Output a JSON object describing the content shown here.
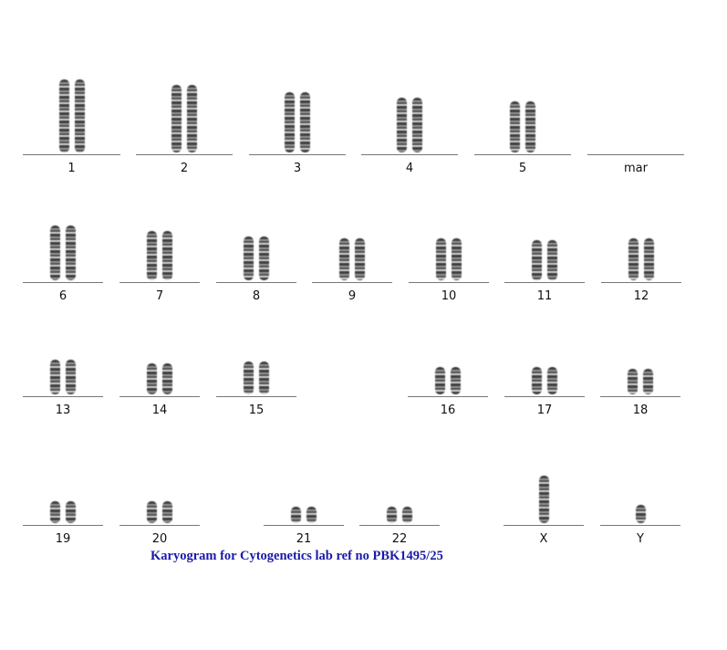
{
  "rows": [
    [
      "1",
      "2",
      "3",
      "4",
      "5",
      "mar"
    ],
    [
      "6",
      "7",
      "8",
      "9",
      "10",
      "11",
      "12"
    ],
    [
      "13",
      "14",
      "15",
      "16",
      "17",
      "18"
    ],
    [
      "19",
      "20",
      "21",
      "22",
      "X",
      "Y"
    ]
  ],
  "caption": "Karyogram for Cytogenetics lab ref no PBK1495/25"
}
